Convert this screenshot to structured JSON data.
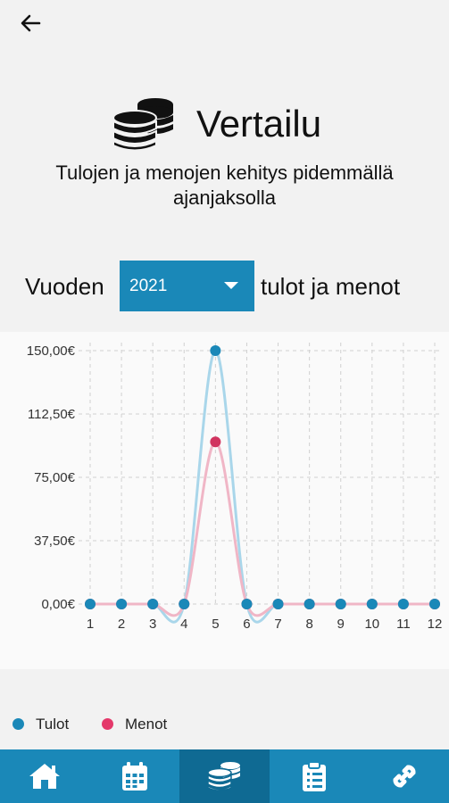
{
  "header": {
    "back_icon": "arrow-left-icon",
    "logo_icon": "coins-icon",
    "title": "Vertailu",
    "subtitle": "Tulojen ja menojen kehitys pidemmällä ajanjaksolla"
  },
  "year_selector": {
    "prefix": "Vuoden",
    "selected": "2021",
    "suffix": "tulot ja menot"
  },
  "colors": {
    "accent": "#1a88b8",
    "accent_dark": "#0f6a93",
    "tulot": "#1a88b8",
    "tulot_line": "#a9d6ea",
    "menot": "#d1335f",
    "menot_line": "#f0b6c6"
  },
  "chart_data": {
    "type": "line",
    "x": [
      1,
      2,
      3,
      4,
      5,
      6,
      7,
      8,
      9,
      10,
      11,
      12
    ],
    "categories": [
      "1",
      "2",
      "3",
      "4",
      "5",
      "6",
      "7",
      "8",
      "9",
      "10",
      "11",
      "12"
    ],
    "y_ticks": [
      "0,00€",
      "37,50€",
      "75,00€",
      "112,50€",
      "150,00€"
    ],
    "y_tick_values": [
      0,
      37.5,
      75,
      112.5,
      150
    ],
    "ylim": [
      0,
      150
    ],
    "grid": true,
    "legend_position": "bottom-left",
    "series": [
      {
        "name": "Tulot",
        "values": [
          0,
          0,
          0,
          0,
          150,
          0,
          0,
          0,
          0,
          0,
          0,
          0
        ]
      },
      {
        "name": "Menot",
        "values": [
          0,
          0,
          0,
          0,
          96,
          0,
          0,
          0,
          0,
          0,
          0,
          0
        ]
      }
    ]
  },
  "legend": [
    {
      "label": "Tulot"
    },
    {
      "label": "Menot"
    }
  ],
  "nav": {
    "tabs": [
      {
        "icon": "home-icon"
      },
      {
        "icon": "calendar-icon"
      },
      {
        "icon": "coins-icon",
        "active": true
      },
      {
        "icon": "clipboard-icon"
      },
      {
        "icon": "link-icon"
      }
    ]
  }
}
